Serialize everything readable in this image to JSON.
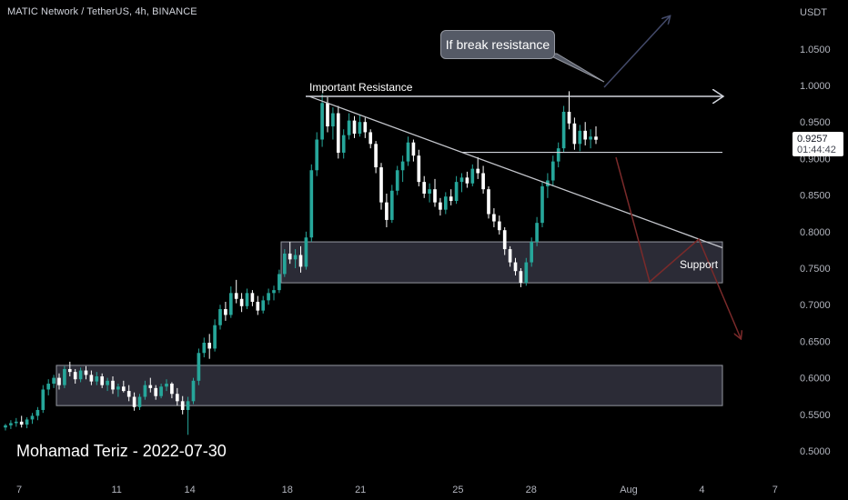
{
  "header": {
    "symbol": "MATIC Network / TetherUS, 4h, BINANCE"
  },
  "author": "Mohamad Teriz - 2022-07-30",
  "annotations": {
    "resistance_label": "Important Resistance",
    "support_label": "Support",
    "callout": "If break resistance"
  },
  "price_badge": {
    "price": "0.9257",
    "countdown": "01:44:42"
  },
  "colors": {
    "background": "#000000",
    "up_candle": "#26a69a",
    "down_candle": "#ffffff",
    "axis_text": "#b2b5be",
    "arrow_bullish": "#434a6a",
    "arrow_bearish": "#7a2a2a",
    "zone_fill": "#3a3a48"
  },
  "chart_data": {
    "type": "candlestick",
    "title": "MATIC Network / TetherUS, 4h, BINANCE",
    "y_axis_label": "USDT",
    "ylim": [
      0.47,
      1.1
    ],
    "y_ticks": [
      "1.0500",
      "1.0000",
      "0.9500",
      "0.9000",
      "0.8500",
      "0.8000",
      "0.7500",
      "0.7000",
      "0.6500",
      "0.6000",
      "0.5500",
      "0.5000"
    ],
    "x_range_days": [
      6.5,
      8.0
    ],
    "x_ticks": [
      {
        "label": "7",
        "day": 7
      },
      {
        "label": "11",
        "day": 11
      },
      {
        "label": "14",
        "day": 14
      },
      {
        "label": "18",
        "day": 18
      },
      {
        "label": "21",
        "day": 21
      },
      {
        "label": "25",
        "day": 25
      },
      {
        "label": "28",
        "day": 28
      },
      {
        "label": "Aug",
        "day": 32
      },
      {
        "label": "4",
        "day": 35
      },
      {
        "label": "7",
        "day": 38
      }
    ],
    "last_price": 0.9257,
    "candles": [
      [
        0.532,
        0.537,
        0.528,
        0.535
      ],
      [
        0.535,
        0.542,
        0.53,
        0.538
      ],
      [
        0.538,
        0.545,
        0.533,
        0.54
      ],
      [
        0.54,
        0.548,
        0.532,
        0.536
      ],
      [
        0.536,
        0.546,
        0.531,
        0.543
      ],
      [
        0.543,
        0.552,
        0.537,
        0.548
      ],
      [
        0.548,
        0.56,
        0.542,
        0.556
      ],
      [
        0.556,
        0.59,
        0.552,
        0.584
      ],
      [
        0.584,
        0.598,
        0.576,
        0.592
      ],
      [
        0.592,
        0.604,
        0.586,
        0.6
      ],
      [
        0.6,
        0.606,
        0.584,
        0.59
      ],
      [
        0.59,
        0.616,
        0.586,
        0.612
      ],
      [
        0.612,
        0.622,
        0.602,
        0.608
      ],
      [
        0.608,
        0.612,
        0.592,
        0.598
      ],
      [
        0.598,
        0.614,
        0.594,
        0.61
      ],
      [
        0.61,
        0.616,
        0.598,
        0.604
      ],
      [
        0.604,
        0.61,
        0.59,
        0.595
      ],
      [
        0.595,
        0.608,
        0.59,
        0.602
      ],
      [
        0.602,
        0.606,
        0.586,
        0.59
      ],
      [
        0.59,
        0.6,
        0.582,
        0.596
      ],
      [
        0.596,
        0.602,
        0.578,
        0.584
      ],
      [
        0.584,
        0.592,
        0.574,
        0.588
      ],
      [
        0.588,
        0.596,
        0.58,
        0.582
      ],
      [
        0.582,
        0.59,
        0.568,
        0.574
      ],
      [
        0.574,
        0.58,
        0.555,
        0.56
      ],
      [
        0.56,
        0.578,
        0.556,
        0.574
      ],
      [
        0.574,
        0.596,
        0.57,
        0.59
      ],
      [
        0.59,
        0.6,
        0.58,
        0.586
      ],
      [
        0.586,
        0.59,
        0.57,
        0.575
      ],
      [
        0.575,
        0.592,
        0.572,
        0.588
      ],
      [
        0.588,
        0.598,
        0.582,
        0.592
      ],
      [
        0.592,
        0.594,
        0.572,
        0.578
      ],
      [
        0.578,
        0.586,
        0.562,
        0.568
      ],
      [
        0.568,
        0.575,
        0.55,
        0.556
      ],
      [
        0.556,
        0.574,
        0.522,
        0.568
      ],
      [
        0.568,
        0.6,
        0.564,
        0.596
      ],
      [
        0.596,
        0.64,
        0.59,
        0.634
      ],
      [
        0.634,
        0.655,
        0.628,
        0.648
      ],
      [
        0.648,
        0.66,
        0.626,
        0.64
      ],
      [
        0.64,
        0.68,
        0.636,
        0.672
      ],
      [
        0.672,
        0.7,
        0.666,
        0.694
      ],
      [
        0.694,
        0.704,
        0.678,
        0.686
      ],
      [
        0.686,
        0.725,
        0.682,
        0.716
      ],
      [
        0.716,
        0.734,
        0.702,
        0.708
      ],
      [
        0.708,
        0.716,
        0.69,
        0.698
      ],
      [
        0.698,
        0.722,
        0.694,
        0.716
      ],
      [
        0.716,
        0.72,
        0.698,
        0.704
      ],
      [
        0.704,
        0.712,
        0.686,
        0.692
      ],
      [
        0.692,
        0.712,
        0.688,
        0.706
      ],
      [
        0.706,
        0.722,
        0.7,
        0.716
      ],
      [
        0.716,
        0.726,
        0.706,
        0.72
      ],
      [
        0.72,
        0.748,
        0.716,
        0.742
      ],
      [
        0.742,
        0.776,
        0.738,
        0.77
      ],
      [
        0.77,
        0.786,
        0.756,
        0.762
      ],
      [
        0.762,
        0.776,
        0.75,
        0.768
      ],
      [
        0.768,
        0.78,
        0.744,
        0.752
      ],
      [
        0.752,
        0.8,
        0.748,
        0.792
      ],
      [
        0.792,
        0.892,
        0.786,
        0.884
      ],
      [
        0.884,
        0.936,
        0.876,
        0.926
      ],
      [
        0.926,
        0.988,
        0.916,
        0.976
      ],
      [
        0.976,
        0.984,
        0.936,
        0.944
      ],
      [
        0.944,
        0.97,
        0.926,
        0.962
      ],
      [
        0.962,
        0.972,
        0.9,
        0.908
      ],
      [
        0.908,
        0.94,
        0.9,
        0.932
      ],
      [
        0.932,
        0.962,
        0.926,
        0.952
      ],
      [
        0.952,
        0.958,
        0.928,
        0.934
      ],
      [
        0.934,
        0.96,
        0.93,
        0.95
      ],
      [
        0.95,
        0.956,
        0.928,
        0.936
      ],
      [
        0.936,
        0.94,
        0.914,
        0.92
      ],
      [
        0.92,
        0.924,
        0.88,
        0.888
      ],
      [
        0.888,
        0.894,
        0.83,
        0.84
      ],
      [
        0.84,
        0.852,
        0.806,
        0.816
      ],
      [
        0.816,
        0.864,
        0.812,
        0.856
      ],
      [
        0.856,
        0.89,
        0.85,
        0.884
      ],
      [
        0.884,
        0.904,
        0.868,
        0.896
      ],
      [
        0.896,
        0.93,
        0.89,
        0.922
      ],
      [
        0.922,
        0.926,
        0.896,
        0.904
      ],
      [
        0.904,
        0.912,
        0.862,
        0.868
      ],
      [
        0.868,
        0.876,
        0.846,
        0.852
      ],
      [
        0.852,
        0.866,
        0.84,
        0.858
      ],
      [
        0.858,
        0.872,
        0.834,
        0.84
      ],
      [
        0.84,
        0.846,
        0.822,
        0.83
      ],
      [
        0.83,
        0.854,
        0.824,
        0.848
      ],
      [
        0.848,
        0.858,
        0.836,
        0.842
      ],
      [
        0.842,
        0.876,
        0.838,
        0.868
      ],
      [
        0.868,
        0.88,
        0.854,
        0.874
      ],
      [
        0.874,
        0.882,
        0.86,
        0.866
      ],
      [
        0.866,
        0.892,
        0.862,
        0.886
      ],
      [
        0.886,
        0.902,
        0.872,
        0.88
      ],
      [
        0.88,
        0.89,
        0.852,
        0.858
      ],
      [
        0.858,
        0.862,
        0.818,
        0.824
      ],
      [
        0.824,
        0.832,
        0.806,
        0.814
      ],
      [
        0.814,
        0.822,
        0.796,
        0.802
      ],
      [
        0.802,
        0.806,
        0.768,
        0.776
      ],
      [
        0.776,
        0.78,
        0.752,
        0.758
      ],
      [
        0.758,
        0.764,
        0.74,
        0.746
      ],
      [
        0.746,
        0.75,
        0.724,
        0.73
      ],
      [
        0.73,
        0.764,
        0.726,
        0.758
      ],
      [
        0.758,
        0.792,
        0.752,
        0.786
      ],
      [
        0.786,
        0.82,
        0.78,
        0.812
      ],
      [
        0.812,
        0.868,
        0.806,
        0.862
      ],
      [
        0.862,
        0.88,
        0.846,
        0.87
      ],
      [
        0.87,
        0.904,
        0.862,
        0.896
      ],
      [
        0.896,
        0.922,
        0.888,
        0.914
      ],
      [
        0.914,
        0.972,
        0.908,
        0.964
      ],
      [
        0.964,
        0.992,
        0.94,
        0.948
      ],
      [
        0.948,
        0.956,
        0.912,
        0.92
      ],
      [
        0.92,
        0.946,
        0.91,
        0.938
      ],
      [
        0.938,
        0.95,
        0.918,
        0.926
      ],
      [
        0.926,
        0.94,
        0.914,
        0.93
      ],
      [
        0.93,
        0.944,
        0.92,
        0.9257
      ]
    ],
    "horizontal_lines": [
      {
        "label": "Important Resistance",
        "price": 0.985
      },
      {
        "label": "",
        "price": 0.9085
      }
    ],
    "zones": [
      {
        "label": "Support",
        "from": 0.73,
        "to": 0.786
      },
      {
        "label": "",
        "from": 0.562,
        "to": 0.617
      }
    ],
    "trendline": {
      "from": [
        18.25,
        0.985
      ],
      "to": [
        36.0,
        0.778
      ]
    }
  }
}
